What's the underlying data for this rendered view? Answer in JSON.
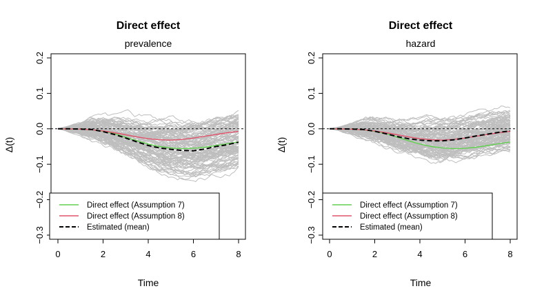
{
  "colors": {
    "background": "#ffffff",
    "simulation": "#bebebe",
    "assumption7": "#61d04f",
    "assumption8": "#df536b",
    "estimated": "#000000",
    "zero_line": "#000000"
  },
  "chart_data": [
    {
      "type": "line",
      "title": "Direct effect",
      "subtitle": "prevalence",
      "xlabel": "Time",
      "ylabel": "Δ(t)",
      "xlim": [
        0,
        8
      ],
      "ylim": [
        -0.3,
        0.2
      ],
      "xticks": [
        0,
        2,
        4,
        6,
        8
      ],
      "xtick_labels": [
        "0",
        "2",
        "4",
        "6",
        "8"
      ],
      "yticks": [
        -0.3,
        -0.2,
        -0.1,
        0.0,
        0.1,
        0.2
      ],
      "ytick_labels": [
        "−0.3",
        "−0.2",
        "−0.1",
        "0.0",
        "0.1",
        "0.2"
      ],
      "reference_line": {
        "y": 0.0,
        "style": "dotted"
      },
      "simulation_band": {
        "count": 100,
        "spread_end": 0.065
      },
      "legend": {
        "position": "bottom-left",
        "entries": [
          {
            "label": "Direct effect (Assumption 7)",
            "color": "#61d04f",
            "style": "solid"
          },
          {
            "label": "Direct effect (Assumption 8)",
            "color": "#df536b",
            "style": "solid"
          },
          {
            "label": "Estimated (mean)",
            "color": "#000000",
            "style": "dashed"
          }
        ]
      },
      "series": [
        {
          "name": "Direct effect (Assumption 7)",
          "color": "#61d04f",
          "x": [
            0,
            0.5,
            1,
            1.5,
            2,
            2.5,
            3,
            3.5,
            4,
            4.5,
            5,
            5.5,
            6,
            6.5,
            7,
            7.5,
            8
          ],
          "y": [
            0,
            -0.0005,
            -0.001,
            -0.003,
            -0.007,
            -0.014,
            -0.024,
            -0.034,
            -0.043,
            -0.05,
            -0.054,
            -0.056,
            -0.055,
            -0.052,
            -0.047,
            -0.042,
            -0.037
          ]
        },
        {
          "name": "Direct effect (Assumption 8)",
          "color": "#df536b",
          "x": [
            0,
            0.5,
            1,
            1.5,
            2,
            2.5,
            3,
            3.5,
            4,
            4.5,
            5,
            5.5,
            6,
            6.5,
            7,
            7.5,
            8
          ],
          "y": [
            0,
            -0.0005,
            -0.001,
            -0.003,
            -0.006,
            -0.011,
            -0.017,
            -0.023,
            -0.028,
            -0.031,
            -0.032,
            -0.03,
            -0.026,
            -0.021,
            -0.016,
            -0.011,
            -0.007
          ]
        },
        {
          "name": "Estimated (mean)",
          "color": "#000000",
          "dashed": true,
          "x": [
            0,
            0.5,
            1,
            1.5,
            2,
            2.5,
            3,
            3.5,
            4,
            4.5,
            5,
            5.5,
            6,
            6.5,
            7,
            7.5,
            8
          ],
          "y": [
            0,
            0.0,
            -0.001,
            -0.002,
            -0.008,
            -0.016,
            -0.026,
            -0.037,
            -0.047,
            -0.054,
            -0.058,
            -0.061,
            -0.062,
            -0.057,
            -0.05,
            -0.045,
            -0.038
          ]
        }
      ]
    },
    {
      "type": "line",
      "title": "Direct effect",
      "subtitle": "hazard",
      "xlabel": "Time",
      "ylabel": "Δ(t)",
      "xlim": [
        0,
        8
      ],
      "ylim": [
        -0.3,
        0.2
      ],
      "xticks": [
        0,
        2,
        4,
        6,
        8
      ],
      "xtick_labels": [
        "0",
        "2",
        "4",
        "6",
        "8"
      ],
      "yticks": [
        -0.3,
        -0.2,
        -0.1,
        0.0,
        0.1,
        0.2
      ],
      "ytick_labels": [
        "−0.3",
        "−0.2",
        "−0.1",
        "0.0",
        "0.1",
        "0.2"
      ],
      "reference_line": {
        "y": 0.0,
        "style": "dotted"
      },
      "simulation_band": {
        "count": 100,
        "spread_end": 0.05
      },
      "legend": {
        "position": "bottom-left",
        "entries": [
          {
            "label": "Direct effect (Assumption 7)",
            "color": "#61d04f",
            "style": "solid"
          },
          {
            "label": "Direct effect (Assumption 8)",
            "color": "#df536b",
            "style": "solid"
          },
          {
            "label": "Estimated (mean)",
            "color": "#000000",
            "style": "dashed"
          }
        ]
      },
      "series": [
        {
          "name": "Direct effect (Assumption 7)",
          "color": "#61d04f",
          "x": [
            0,
            0.5,
            1,
            1.5,
            2,
            2.5,
            3,
            3.5,
            4,
            4.5,
            5,
            5.5,
            6,
            6.5,
            7,
            7.5,
            8
          ],
          "y": [
            0,
            -0.0005,
            -0.001,
            -0.003,
            -0.007,
            -0.014,
            -0.024,
            -0.034,
            -0.043,
            -0.05,
            -0.054,
            -0.056,
            -0.055,
            -0.052,
            -0.047,
            -0.042,
            -0.037
          ]
        },
        {
          "name": "Direct effect (Assumption 8)",
          "color": "#df536b",
          "x": [
            0,
            0.5,
            1,
            1.5,
            2,
            2.5,
            3,
            3.5,
            4,
            4.5,
            5,
            5.5,
            6,
            6.5,
            7,
            7.5,
            8
          ],
          "y": [
            0,
            -0.0005,
            -0.001,
            -0.003,
            -0.006,
            -0.011,
            -0.017,
            -0.023,
            -0.028,
            -0.031,
            -0.032,
            -0.03,
            -0.026,
            -0.021,
            -0.016,
            -0.011,
            -0.007
          ]
        },
        {
          "name": "Estimated (mean)",
          "color": "#000000",
          "dashed": true,
          "x": [
            0,
            0.5,
            1,
            1.5,
            2,
            2.5,
            3,
            3.5,
            4,
            4.5,
            5,
            5.5,
            6,
            6.5,
            7,
            7.5,
            8
          ],
          "y": [
            0,
            0.0,
            -0.001,
            -0.002,
            -0.007,
            -0.014,
            -0.022,
            -0.028,
            -0.032,
            -0.034,
            -0.034,
            -0.031,
            -0.026,
            -0.02,
            -0.015,
            -0.01,
            -0.006
          ]
        }
      ]
    }
  ]
}
